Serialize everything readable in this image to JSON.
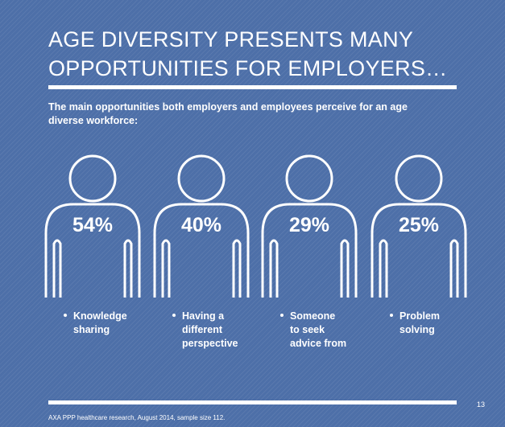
{
  "header": {
    "title": [
      "AGE DIVERSITY PRESENTS MANY",
      "OPPORTUNITIES FOR EMPLOYERS…"
    ],
    "subtitle": [
      "The main opportunities both employers and employees perceive for an age",
      "diverse workforce:"
    ]
  },
  "items": [
    {
      "value": "54%",
      "label": [
        "Knowledge",
        "sharing"
      ]
    },
    {
      "value": "40%",
      "label": [
        "Having a",
        "different",
        "perspective"
      ]
    },
    {
      "value": "29%",
      "label": [
        "Someone",
        "to seek",
        "advice from"
      ]
    },
    {
      "value": "25%",
      "label": [
        "Problem",
        "solving"
      ]
    }
  ],
  "footer": {
    "page": "13",
    "source": "AXA PPP healthcare research, August 2014, sample size 112."
  }
}
